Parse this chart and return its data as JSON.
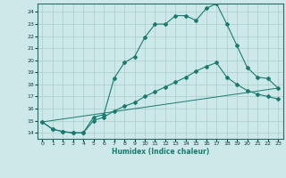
{
  "xlabel": "Humidex (Indice chaleur)",
  "xlim": [
    -0.5,
    23.5
  ],
  "ylim": [
    13.5,
    24.7
  ],
  "xticks": [
    0,
    1,
    2,
    3,
    4,
    5,
    6,
    7,
    8,
    9,
    10,
    11,
    12,
    13,
    14,
    15,
    16,
    17,
    18,
    19,
    20,
    21,
    22,
    23
  ],
  "yticks": [
    14,
    15,
    16,
    17,
    18,
    19,
    20,
    21,
    22,
    23,
    24
  ],
  "background_color": "#cce8e8",
  "line_color": "#1a7a6e",
  "grid_color": "#aacccc",
  "line1_x": [
    0,
    1,
    2,
    3,
    4,
    5,
    6,
    7,
    8,
    9,
    10,
    11,
    12,
    13,
    14,
    15,
    16,
    17,
    18,
    19,
    20,
    21,
    22,
    23
  ],
  "line1_y": [
    14.9,
    14.3,
    14.1,
    14.0,
    14.0,
    15.3,
    15.5,
    18.5,
    19.8,
    20.3,
    21.9,
    23.0,
    23.0,
    23.7,
    23.7,
    23.3,
    24.3,
    24.7,
    23.0,
    21.2,
    19.4,
    18.6,
    18.5,
    17.7
  ],
  "line2_x": [
    0,
    1,
    2,
    3,
    4,
    5,
    6,
    7,
    8,
    9,
    10,
    11,
    12,
    13,
    14,
    15,
    16,
    17,
    18,
    19,
    20,
    21,
    22,
    23
  ],
  "line2_y": [
    14.9,
    14.3,
    14.1,
    14.0,
    14.0,
    15.0,
    15.3,
    15.8,
    16.2,
    16.5,
    17.0,
    17.4,
    17.8,
    18.2,
    18.6,
    19.1,
    19.5,
    19.8,
    18.6,
    18.0,
    17.5,
    17.2,
    17.0,
    16.8
  ],
  "line3_x": [
    0,
    23
  ],
  "line3_y": [
    14.9,
    17.7
  ],
  "xlabel_fontsize": 5.5,
  "tick_fontsize": 4.5
}
